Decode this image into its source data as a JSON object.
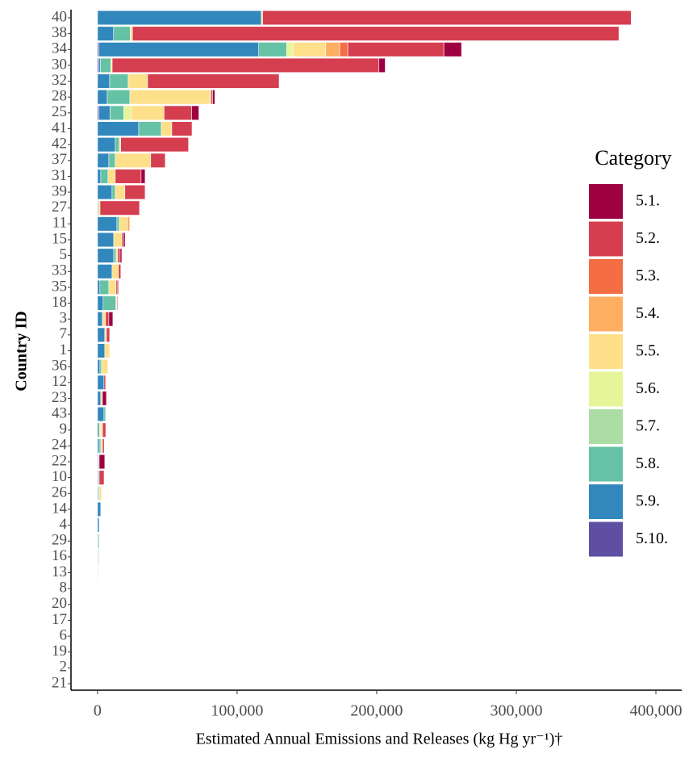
{
  "chart_data": {
    "type": "stacked-bar-horizontal",
    "xlabel": "Estimated Annual Emissions and Releases (kg Hg yr⁻¹)†",
    "ylabel": "Country ID",
    "legend_title": "Category",
    "legend_position": "right",
    "categories": [
      "40",
      "38",
      "34",
      "30",
      "32",
      "28",
      "25",
      "41",
      "42",
      "37",
      "31",
      "39",
      "27",
      "11",
      "15",
      "5",
      "33",
      "35",
      "18",
      "3",
      "7",
      "1",
      "36",
      "12",
      "23",
      "43",
      "9",
      "24",
      "22",
      "10",
      "26",
      "14",
      "4",
      "29",
      "16",
      "13",
      "8",
      "20",
      "17",
      "6",
      "19",
      "2",
      "21"
    ],
    "xlim": [
      -19000,
      418500
    ],
    "xticks": [
      0,
      {
        "value": 100000,
        "label": "100,000"
      },
      {
        "value": 200000,
        "label": "200,000"
      },
      {
        "value": 300000,
        "label": "300,000"
      },
      {
        "value": 400000,
        "label": "400,000"
      }
    ],
    "series": [
      {
        "name": "5.1.",
        "color": "#9e0142",
        "values": [
          0,
          0,
          12700,
          4600,
          0,
          1700,
          5200,
          0,
          0,
          0,
          2900,
          0,
          0,
          0,
          1200,
          1200,
          0,
          600,
          0,
          2900,
          0,
          0,
          0,
          0,
          2900,
          0,
          0,
          0,
          4000,
          0,
          0,
          0,
          0,
          0,
          0,
          0,
          0,
          0,
          0,
          0,
          0,
          0,
          0
        ]
      },
      {
        "name": "5.2.",
        "color": "#d53e4f",
        "values": [
          264000,
          348500,
          68800,
          191000,
          94200,
          1000,
          19700,
          14500,
          48600,
          10400,
          18500,
          14500,
          28300,
          0,
          1200,
          1700,
          1700,
          1200,
          600,
          2300,
          2300,
          0,
          0,
          1200,
          0,
          0,
          2300,
          1200,
          0,
          3500,
          0,
          0,
          0,
          0,
          400,
          300,
          0,
          0,
          0,
          0,
          0,
          0,
          0
        ]
      },
      {
        "name": "5.3.",
        "color": "#f46d43",
        "values": [
          0,
          0,
          5800,
          0,
          0,
          0,
          0,
          0,
          0,
          0,
          0,
          0,
          0,
          0,
          0,
          0,
          0,
          0,
          0,
          0,
          0,
          0,
          0,
          0,
          0,
          0,
          0,
          0,
          0,
          0,
          0,
          0,
          0,
          0,
          0,
          0,
          0,
          0,
          0,
          0,
          0,
          0,
          0
        ]
      },
      {
        "name": "5.4.",
        "color": "#fdae61",
        "values": [
          0,
          0,
          10000,
          0,
          0,
          1000,
          0,
          0,
          0,
          0,
          0,
          0,
          0,
          1700,
          0,
          0,
          0,
          0,
          0,
          0,
          0,
          0,
          0,
          0,
          0,
          0,
          0,
          0,
          0,
          0,
          0,
          0,
          0,
          0,
          0,
          0,
          0,
          0,
          0,
          0,
          0,
          0,
          0
        ]
      },
      {
        "name": "5.5.",
        "color": "#fee08b",
        "values": [
          1000,
          1500,
          23500,
          1000,
          13900,
          57200,
          23700,
          7500,
          1000,
          25400,
          5200,
          6900,
          1200,
          5800,
          5800,
          1200,
          4600,
          5200,
          600,
          2300,
          1200,
          3500,
          4600,
          0,
          1200,
          0,
          1200,
          1200,
          600,
          0,
          1700,
          0,
          0,
          0,
          0,
          0,
          0,
          0,
          0,
          0,
          0,
          0,
          0
        ]
      },
      {
        "name": "5.6.",
        "color": "#e6f598",
        "values": [
          0,
          0,
          4500,
          0,
          0,
          0,
          5200,
          0,
          0,
          0,
          0,
          0,
          0,
          0,
          0,
          0,
          0,
          0,
          0,
          0,
          0,
          0,
          0,
          0,
          0,
          0,
          1200,
          0,
          0,
          0,
          0,
          0,
          0,
          0,
          0,
          0,
          0,
          0,
          0,
          0,
          0,
          0,
          0
        ]
      },
      {
        "name": "5.7.",
        "color": "#abdda4",
        "values": [
          0,
          0,
          0,
          0,
          0,
          0,
          0,
          0,
          0,
          0,
          0,
          0,
          0,
          0,
          0,
          0,
          0,
          0,
          0,
          0,
          0,
          0,
          0,
          0,
          0,
          0,
          0,
          0,
          0,
          0,
          0,
          0,
          0,
          0,
          0,
          0,
          0,
          0,
          0,
          0,
          0,
          0,
          0
        ]
      },
      {
        "name": "5.8.",
        "color": "#66c2a5",
        "values": [
          0,
          12000,
          20000,
          7500,
          13300,
          16200,
          9800,
          16200,
          2900,
          4600,
          5200,
          2300,
          0,
          1700,
          0,
          1700,
          0,
          6400,
          9200,
          0,
          0,
          0,
          1200,
          0,
          0,
          1200,
          0,
          1200,
          0,
          600,
          600,
          0,
          0,
          900,
          500,
          400,
          200,
          0,
          0,
          0,
          0,
          0,
          0
        ]
      },
      {
        "name": "5.9.",
        "color": "#3288bd",
        "values": [
          117300,
          11500,
          114500,
          1000,
          8700,
          7000,
          8000,
          29500,
          12700,
          8100,
          2300,
          10400,
          600,
          13900,
          11600,
          11600,
          10400,
          1700,
          4000,
          3500,
          5200,
          5200,
          1700,
          4600,
          2300,
          4600,
          1200,
          1200,
          600,
          600,
          600,
          2300,
          1200,
          300,
          0,
          0,
          0,
          0,
          0,
          0,
          0,
          0,
          0
        ]
      },
      {
        "name": "5.10.",
        "color": "#5e4fa2",
        "values": [
          0,
          0,
          1000,
          1000,
          0,
          0,
          1000,
          0,
          0,
          0,
          0,
          0,
          0,
          0,
          0,
          0,
          0,
          0,
          0,
          0,
          0,
          0,
          0,
          0,
          0,
          0,
          0,
          0,
          0,
          0,
          0,
          0,
          0,
          0,
          0,
          0,
          0,
          0,
          0,
          0,
          0,
          0,
          0
        ]
      }
    ]
  }
}
